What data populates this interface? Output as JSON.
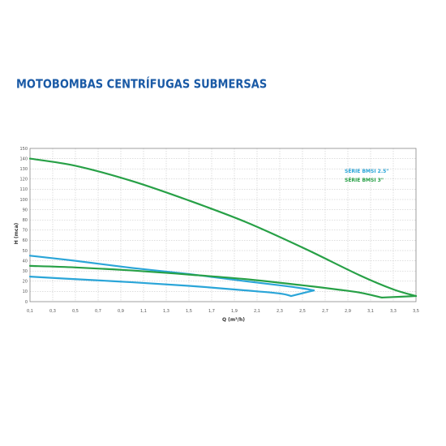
{
  "page_title": "MOTOBOMBAS CENTRÍFUGAS SUBMERSAS",
  "colors": {
    "title": "#1a5aa6",
    "series_blue": "#2aa5d8",
    "series_green": "#27a046",
    "grid": "#bdbdbd",
    "frame": "#888888"
  },
  "chart_data": {
    "type": "line",
    "xlabel": "Q (m³/h)",
    "ylabel": "H (mca)",
    "xlim": [
      0.1,
      3.5
    ],
    "ylim": [
      0,
      150
    ],
    "grid": true,
    "legend_placement": "top-right",
    "x_ticks": [
      "0,1",
      "0,3",
      "0,5",
      "0,7",
      "0,9",
      "1,1",
      "1,3",
      "1,5",
      "1,7",
      "1,9",
      "2,1",
      "2,3",
      "2,5",
      "2,7",
      "2,9",
      "3,1",
      "3,3",
      "3,5"
    ],
    "y_ticks": [
      "0",
      "10",
      "20",
      "30",
      "40",
      "50",
      "60",
      "70",
      "80",
      "90",
      "100",
      "110",
      "120",
      "130",
      "140",
      "150"
    ],
    "series": [
      {
        "name": "SÉRIE BMSI 2.5\"",
        "color": "#2aa5d8",
        "curves": [
          {
            "x": [
              0.1,
              0.5,
              1.0,
              1.5,
              2.0,
              2.3,
              2.5,
              2.6
            ],
            "y": [
              45,
              40,
              33,
              27,
              20,
              16,
              13,
              11
            ]
          },
          {
            "x": [
              0.1,
              0.5,
              1.0,
              1.5,
              2.0,
              2.3,
              2.4
            ],
            "y": [
              24.5,
              22,
              19,
              15.5,
              11,
              8,
              5.5
            ]
          }
        ],
        "connector": {
          "x": [
            2.4,
            2.6
          ],
          "y": [
            5.5,
            11
          ]
        }
      },
      {
        "name": "SÉRIE BMSI 3\"",
        "color": "#27a046",
        "curves": [
          {
            "x": [
              0.1,
              0.5,
              1.0,
              1.5,
              2.0,
              2.5,
              3.0,
              3.3,
              3.5
            ],
            "y": [
              140,
              133,
              118,
              99,
              78,
              53,
              26,
              12,
              5.5
            ]
          },
          {
            "x": [
              0.1,
              0.5,
              1.0,
              1.5,
              2.0,
              2.5,
              2.8,
              3.0,
              3.2
            ],
            "y": [
              35,
              33.5,
              30.5,
              26.5,
              22,
              16,
              12,
              9,
              4
            ]
          }
        ],
        "connector": {
          "x": [
            3.2,
            3.5
          ],
          "y": [
            4,
            5.5
          ]
        }
      }
    ]
  }
}
